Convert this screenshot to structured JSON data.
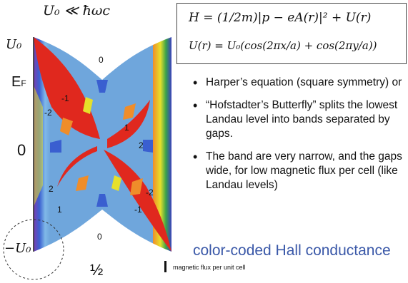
{
  "title": "U₀ ≪ ħωc",
  "equations": {
    "hamiltonian": "H = (1/2m)|p − eA(r)|² + U(r)",
    "potential": "U(r) = U₀(cos(2πx/a) + cos(2πy/a))"
  },
  "axis": {
    "y_top": "U₀",
    "y_fermi_main": "E",
    "y_fermi_sub": "F",
    "y_zero": "0",
    "y_bottom": "−U₀",
    "x_half": "½",
    "x_label": "magnetic flux per unit cell"
  },
  "region_labels": [
    "0",
    "-1",
    "-2",
    "1",
    "2",
    "2",
    "-2",
    "1",
    "-1",
    "0"
  ],
  "bullets": [
    "Harper’s equation (square symmetry) or",
    "“Hofstadter’s Butterfly” splits the lowest Landau level into bands separated by gaps.",
    "The band are very narrow, and the gaps wide, for low magnetic flux per cell (like Landau levels)"
  ],
  "caption": "color-coded Hall conductance",
  "colors": {
    "positive": "#6fa6dc",
    "negative": "#e0281e",
    "caption": "#3a58a8"
  }
}
